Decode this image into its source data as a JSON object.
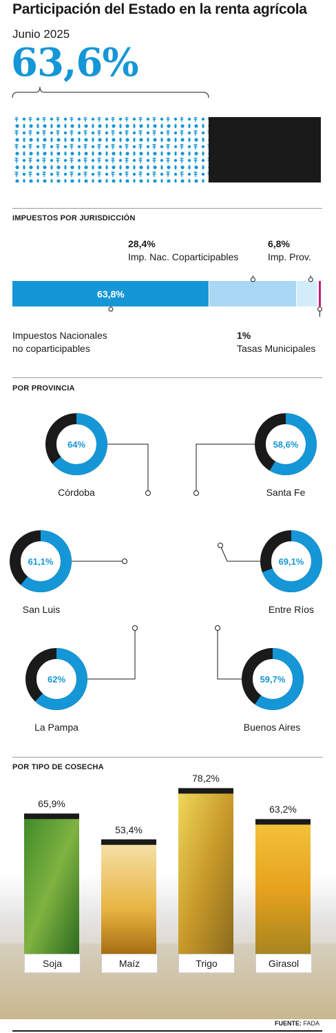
{
  "header": {
    "title": "Participación del Estado en la renta agrícola",
    "date": "Junio 2025",
    "total_pct_label": "63,6%",
    "total_pct": 63.6
  },
  "sections": {
    "jurisdiccion": "IMPUESTOS POR JURISDICCIÓN",
    "provincia": "POR PROVINCIA",
    "cosecha": "POR TIPO DE COSECHA"
  },
  "chart_data": [
    {
      "type": "bar",
      "title": "Impuestos por jurisdicción",
      "orientation": "horizontal-stacked",
      "segments": [
        {
          "value": 63.8,
          "pct_label": "63,8%",
          "name_lines": [
            "Impuestos Nacionales",
            "no coparticipables"
          ],
          "color": "#1596d6"
        },
        {
          "value": 28.4,
          "pct_label": "28,4%",
          "name_lines": [
            "Imp. Nac. Coparticipables"
          ],
          "color": "#a8d8f3"
        },
        {
          "value": 6.8,
          "pct_label": "6,8%",
          "name_lines": [
            "Imp. Prov."
          ],
          "color": "#d3ecf9"
        },
        {
          "value": 1,
          "pct_label": "1%",
          "name_lines": [
            "Tasas Municipales"
          ],
          "color": "#c2187a"
        }
      ]
    },
    {
      "type": "pie",
      "title": "Por provincia",
      "provinces": [
        {
          "name": "Córdoba",
          "value": 64,
          "label": "64%"
        },
        {
          "name": "Santa Fe",
          "value": 58.6,
          "label": "58,6%"
        },
        {
          "name": "San Luis",
          "value": 61.1,
          "label": "61,1%"
        },
        {
          "name": "Entre Ríos",
          "value": 69.1,
          "label": "69,1%"
        },
        {
          "name": "La Pampa",
          "value": 62,
          "label": "62%"
        },
        {
          "name": "Buenos Aires",
          "value": 59.7,
          "label": "59,7%"
        }
      ]
    },
    {
      "type": "bar",
      "title": "Por tipo de cosecha",
      "categories": [
        "Soja",
        "Maíz",
        "Trigo",
        "Girasol"
      ],
      "values": [
        65.9,
        53.4,
        78.2,
        63.2
      ],
      "value_labels": [
        "65,9%",
        "53,4%",
        "78,2%",
        "63,2%"
      ]
    }
  ],
  "colors": {
    "accent": "#1596d6",
    "dark": "#1a1a1a",
    "map_fill": "#e4e1da",
    "municipal": "#c2187a"
  },
  "source": {
    "label": "FUENTE:",
    "value": "FADA"
  }
}
